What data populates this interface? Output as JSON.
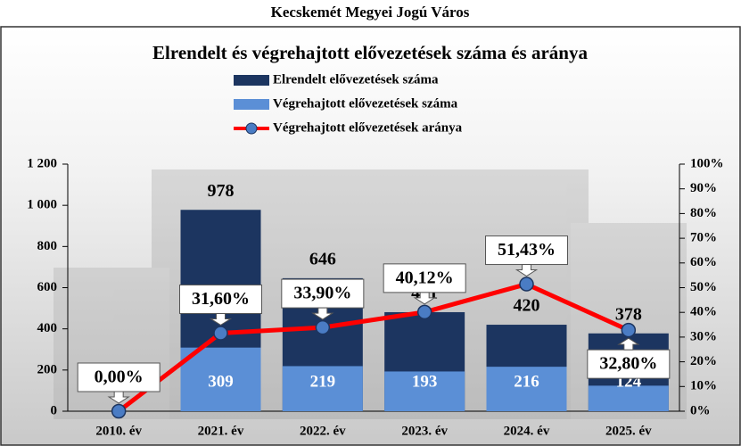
{
  "chart_data": {
    "type": "bar",
    "suptitle": "Kecskemét Megyei Jogú Város",
    "title": "Elrendelt és végrehajtott elővezetések száma és aránya",
    "categories": [
      "2010. év",
      "2021. év",
      "2022. év",
      "2023. év",
      "2024. év",
      "2025. év"
    ],
    "series": [
      {
        "name": "Elrendelt elővezetések száma",
        "color": "#1c3560",
        "values": [
          0,
          978,
          646,
          481,
          420,
          378
        ]
      },
      {
        "name": "Végrehajtott elővezetések száma",
        "color": "#5b8fd6",
        "values": [
          0,
          309,
          219,
          193,
          216,
          124
        ]
      },
      {
        "name": "Végrehajtott elővezetések aránya",
        "type": "line",
        "axis": "y2",
        "color": "#ff0000",
        "marker_color": "#4a7cc4",
        "values": [
          0,
          31.6,
          33.9,
          40.12,
          51.43,
          32.8
        ],
        "value_labels": [
          "0,00%",
          "31,60%",
          "33,90%",
          "40,12%",
          "51,43%",
          "32,80%"
        ]
      }
    ],
    "ylim": [
      0,
      1200
    ],
    "yticks": [
      0,
      200,
      400,
      600,
      800,
      {
        "value": 1000,
        "label": "1 000"
      },
      {
        "value": 1200,
        "label": "1 200"
      }
    ],
    "y2lim": [
      0,
      100
    ],
    "y2ticks": [
      {
        "value": 0,
        "label": "0%"
      },
      {
        "value": 10,
        "label": "10%"
      },
      {
        "value": 20,
        "label": "20%"
      },
      {
        "value": 30,
        "label": "30%"
      },
      {
        "value": 40,
        "label": "40%"
      },
      {
        "value": 50,
        "label": "50%"
      },
      {
        "value": 60,
        "label": "60%"
      },
      {
        "value": 70,
        "label": "70%"
      },
      {
        "value": 80,
        "label": "80%"
      },
      {
        "value": 90,
        "label": "90%"
      },
      {
        "value": 100,
        "label": "100%"
      }
    ]
  }
}
